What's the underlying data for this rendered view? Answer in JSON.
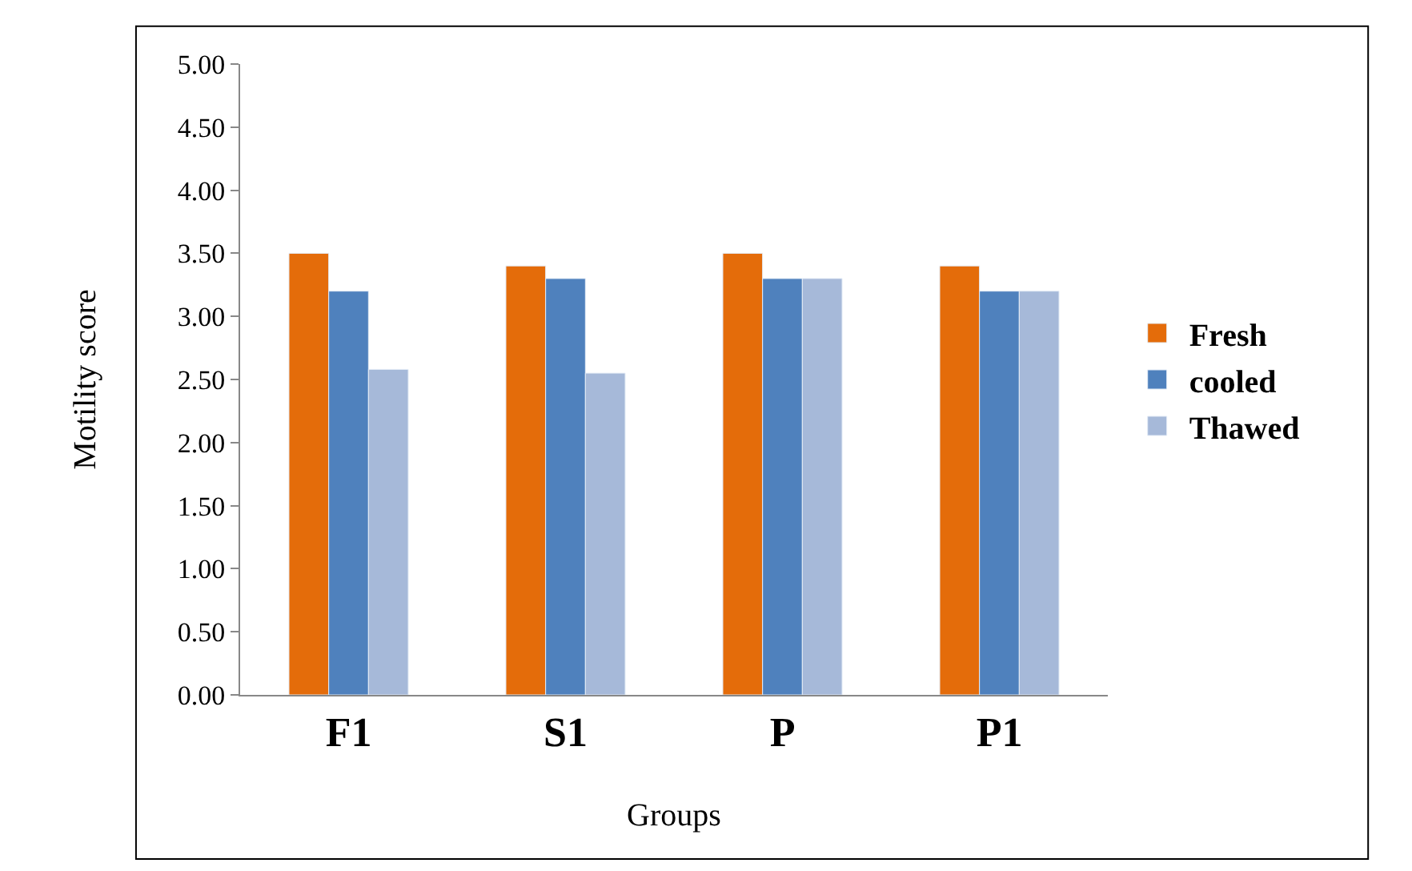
{
  "chart_data": {
    "type": "bar",
    "xlabel": "Groups",
    "ylabel": "Motility score",
    "categories": [
      "F1",
      "S1",
      "P",
      "P1"
    ],
    "series": [
      {
        "name": "Fresh",
        "color": "#e46c0a",
        "values": [
          3.5,
          3.4,
          3.5,
          3.4
        ]
      },
      {
        "name": "cooled",
        "color": "#4f81bd",
        "values": [
          3.2,
          3.3,
          3.3,
          3.2
        ]
      },
      {
        "name": "Thawed",
        "color": "#a6b9d9",
        "values": [
          2.58,
          2.55,
          3.3,
          3.2
        ]
      }
    ],
    "ylim": [
      0,
      5
    ],
    "yticks": [
      {
        "value": 0,
        "label": "0.00"
      },
      {
        "value": 0.5,
        "label": "0.50"
      },
      {
        "value": 1,
        "label": "1.00"
      },
      {
        "value": 1.5,
        "label": "1.50"
      },
      {
        "value": 2,
        "label": "2.00"
      },
      {
        "value": 2.5,
        "label": "2.50"
      },
      {
        "value": 3,
        "label": "3.00"
      },
      {
        "value": 3.5,
        "label": "3.50"
      },
      {
        "value": 4,
        "label": "4.00"
      },
      {
        "value": 4.5,
        "label": "4.50"
      },
      {
        "value": 5,
        "label": "5.00"
      }
    ],
    "legend": "right"
  }
}
